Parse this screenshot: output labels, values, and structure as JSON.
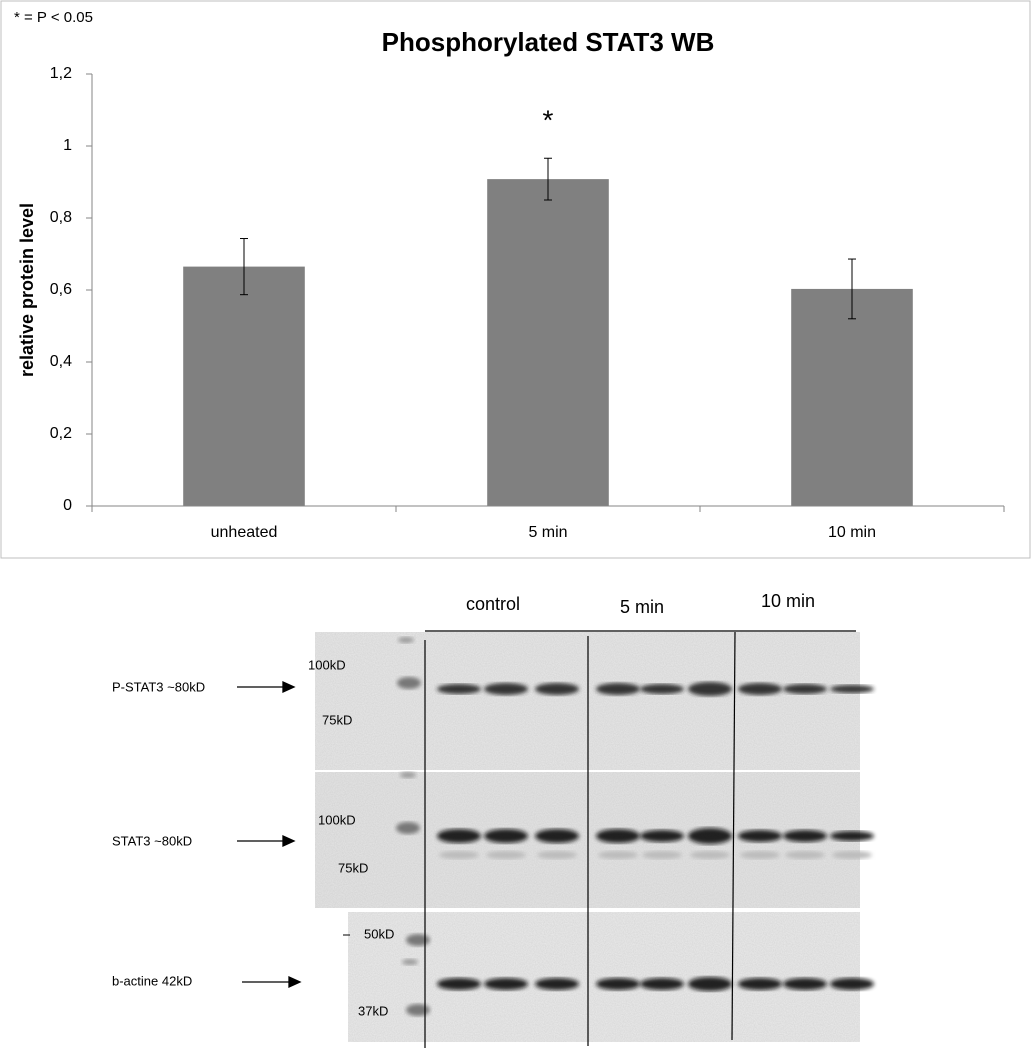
{
  "chart_data": {
    "type": "bar",
    "title": "Phosphorylated STAT3 WB",
    "y_label": "relative protein level",
    "annotations": [
      "* = P < 0.05",
      "*"
    ],
    "categories": [
      "unheated",
      "5 min",
      "10 min"
    ],
    "values": [
      0.665,
      0.908,
      0.603
    ],
    "errors": [
      0.078,
      0.058,
      0.083
    ],
    "color": "#808080",
    "ylim": [
      0,
      1.2
    ],
    "yticks": [
      0,
      {
        "value": 0.2,
        "label": "0,2"
      },
      {
        "value": 0.4,
        "label": "0,4"
      },
      {
        "value": 0.6,
        "label": "0,6"
      },
      {
        "value": 0.8,
        "label": "0,8"
      },
      1,
      {
        "value": 1.2,
        "label": "1,2"
      }
    ],
    "grid": false
  },
  "blot": {
    "lanes": [
      "control",
      "5 min",
      "10 min"
    ],
    "panels": [
      {
        "label": "P-STAT3 ~80kD",
        "markers": [
          "100kD",
          "75kD"
        ]
      },
      {
        "label": "STAT3 ~80kD",
        "markers": [
          "100kD",
          "75kD"
        ]
      },
      {
        "label": "b-actine 42kD",
        "markers": [
          "50kD",
          "37kD"
        ]
      }
    ]
  }
}
